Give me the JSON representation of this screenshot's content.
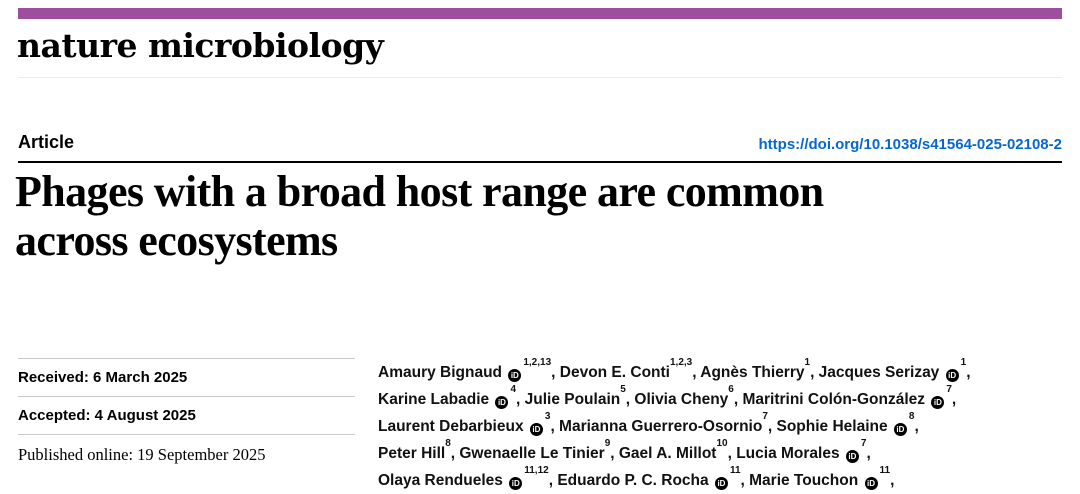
{
  "journal": {
    "name": "nature microbiology",
    "accent_color": "#9d4f9e"
  },
  "header": {
    "kicker": "Article",
    "doi_link": "https://doi.org/10.1038/s41564-025-02108-2",
    "doi_color": "#0767d2"
  },
  "title": {
    "line1": "Phages with a broad host range are common",
    "line2": "across ecosystems"
  },
  "history": [
    {
      "label": "Received: 6 March 2025",
      "style": "sans"
    },
    {
      "label": "Accepted: 4 August 2025",
      "style": "sans"
    },
    {
      "label": "Published online: 19 September 2025",
      "style": "serif"
    }
  ],
  "authors": {
    "orcid_icon": "iD",
    "lines": [
      "Amaury Bignaud {O}^1,2,13^, Devon E. Conti^1,2,3^, Agnès Thierry^1^, Jacques Serizay {O}^1^,",
      "Karine Labadie {O}^4^, Julie Poulain^5^, Olivia Cheny^6^, Maritrini Colón-González {O}^7^,",
      "Laurent Debarbieux {O}^3^, Marianna Guerrero-Osornio^7^, Sophie Helaine {O}^8^,",
      "Peter Hill^8^, Gwenaelle Le Tinier^9^, Gael A. Millot^10^, Lucia Morales {O}^7^,",
      "Olaya Rendueles {O}^11,12^, Eduardo P. C. Rocha {O}^11^, Marie Touchon {O}^11^,"
    ]
  }
}
